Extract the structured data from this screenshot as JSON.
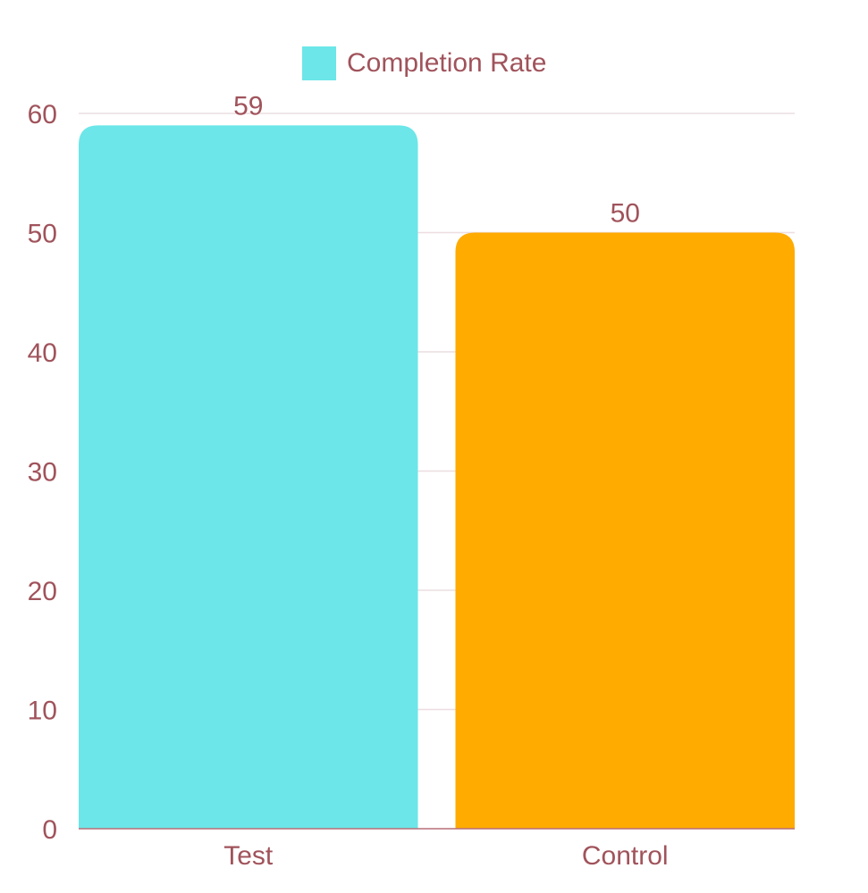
{
  "chart_data": {
    "type": "bar",
    "categories": [
      "Test",
      "Control"
    ],
    "series": [
      {
        "name": "Completion Rate",
        "values": [
          59,
          50
        ],
        "colors": [
          "#6ce6e8",
          "#ffab00"
        ]
      }
    ],
    "ylim": [
      0,
      60
    ],
    "yticks": [
      "0",
      "10",
      "20",
      "30",
      "40",
      "50",
      "60"
    ],
    "data_labels": [
      "59",
      "50"
    ],
    "grid": true,
    "legend_position": "top-center",
    "colors": {
      "text": "#a0535b",
      "grid": "#ecdde0",
      "axis": "#b76e79",
      "legend_swatch": "#6ce6e8"
    }
  }
}
